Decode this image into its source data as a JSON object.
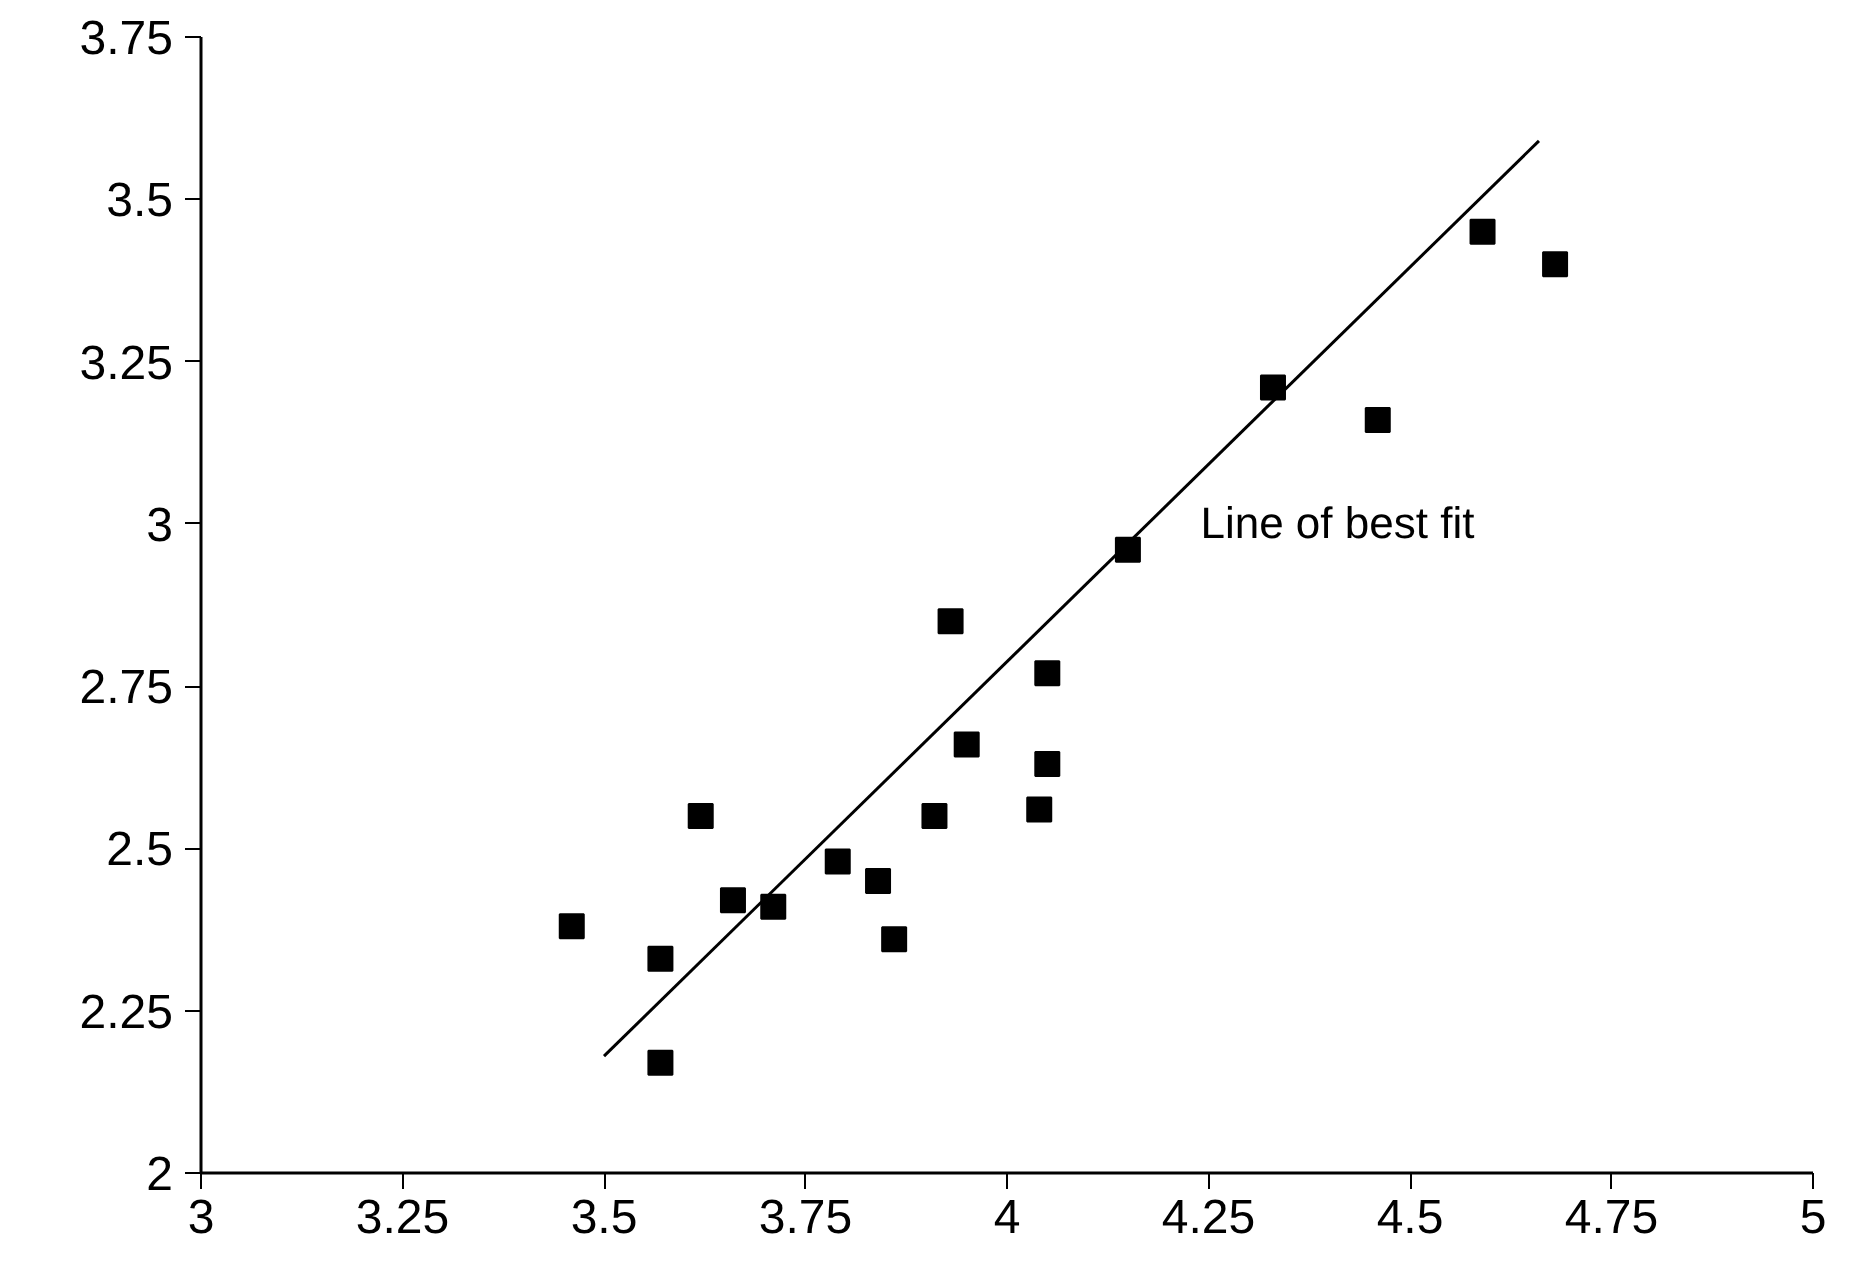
{
  "chart_data": {
    "type": "scatter",
    "xlim": [
      3,
      5
    ],
    "ylim": [
      2,
      3.75
    ],
    "xticks": [
      3,
      3.25,
      3.5,
      3.75,
      4,
      4.25,
      4.5,
      4.75,
      5
    ],
    "yticks": [
      2,
      2.25,
      2.5,
      2.75,
      3,
      3.25,
      3.5,
      3.75
    ],
    "grid": false,
    "series": [
      {
        "marker": "square",
        "color": "#000000",
        "x": [
          3.46,
          3.57,
          3.57,
          3.62,
          3.66,
          3.71,
          3.79,
          3.84,
          3.86,
          3.91,
          3.93,
          3.95,
          4.04,
          4.05,
          4.05,
          4.15,
          4.33,
          4.46,
          4.59,
          4.68
        ],
        "values": [
          2.38,
          2.33,
          2.17,
          2.55,
          2.42,
          2.41,
          2.48,
          2.45,
          2.36,
          2.55,
          2.85,
          2.66,
          2.56,
          2.63,
          2.77,
          2.96,
          3.21,
          3.16,
          3.45,
          3.4
        ]
      },
      {
        "type": "line",
        "line_style": "solid",
        "color": "#000000",
        "x": [
          3.5,
          4.66
        ],
        "values": [
          2.18,
          3.59
        ]
      }
    ],
    "annotations": [
      "Line of best fit"
    ]
  }
}
